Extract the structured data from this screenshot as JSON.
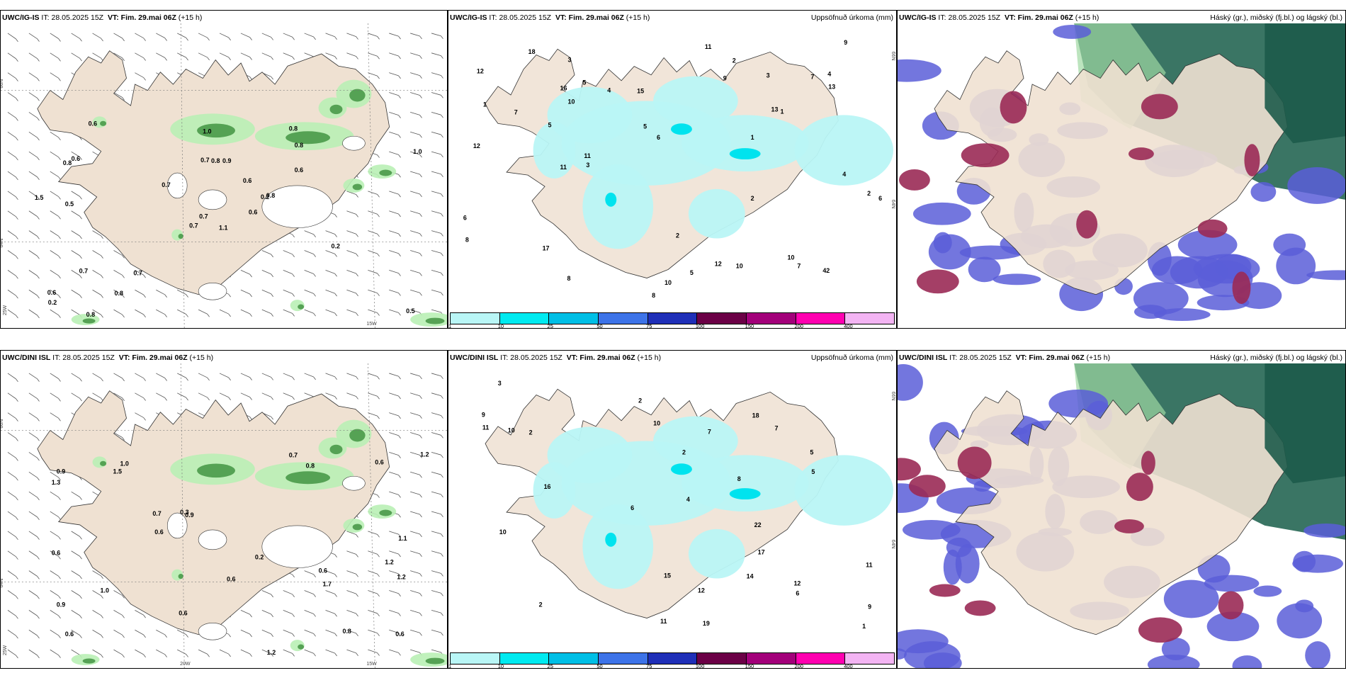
{
  "panels": {
    "p1": {
      "model": "UWC/IG-IS",
      "it_label": "IT:",
      "it": "28.05.2025 15Z",
      "vt_label": "VT:",
      "vt": "Fim. 29.mai 06Z",
      "lead": "(+15 h)",
      "right": ""
    },
    "p2": {
      "model": "UWC/IG-IS",
      "it_label": "IT:",
      "it": "28.05.2025 15Z",
      "vt_label": "VT:",
      "vt": "Fim. 29.mai 06Z",
      "lead": "(+15 h)",
      "right": "Uppsöfnuð úrkoma (mm)"
    },
    "p3": {
      "model": "UWC/IG-IS",
      "it_label": "IT:",
      "it": "28.05.2025 15Z",
      "vt_label": "VT:",
      "vt": "Fim. 29.mai 06Z",
      "lead": "(+15 h)",
      "right": "Háský (gr.), miðský (fj.bl.) og lágský (bl.)"
    },
    "p4": {
      "model": "UWC/DINI ISL",
      "it_label": "IT:",
      "it": "28.05.2025 15Z",
      "vt_label": "VT:",
      "vt": "Fim. 29.mai 06Z",
      "lead": "(+15 h)",
      "right": ""
    },
    "p5": {
      "model": "UWC/DINI ISL",
      "it_label": "IT:",
      "it": "28.05.2025 15Z",
      "vt_label": "VT:",
      "vt": "Fim. 29.mai 06Z",
      "lead": "(+15 h)",
      "right": "Uppsöfnuð úrkoma (mm)"
    },
    "p6": {
      "model": "UWC/DINI ISL",
      "it_label": "IT:",
      "it": "28.05.2025 15Z",
      "vt_label": "VT:",
      "vt": "Fim. 29.mai 06Z",
      "lead": "(+15 h)",
      "right": "Háský (gr.), miðský (fj.bl.) og lágský (bl.)"
    }
  },
  "colorbar": {
    "ticks": [
      "1",
      "10",
      "25",
      "50",
      "75",
      "100",
      "150",
      "200",
      "400"
    ],
    "colors": [
      "#b9f6f6",
      "#00eaf0",
      "#00bfe6",
      "#3d73e8",
      "#1f2fb8",
      "#6b0046",
      "#a3007a",
      "#ff00b0",
      "#f3b4f3"
    ]
  },
  "grid_labels": {
    "n66": "66N",
    "n64": "64N",
    "w20": "20W",
    "w15": "15W",
    "w25": "25W"
  },
  "wind_labels_top": [
    "1.1",
    "0.8",
    "0.7",
    "0.6",
    "0.2",
    "0.7",
    "0.8",
    "0.9",
    "0.8",
    "0.6",
    "0.6",
    "0.5",
    "0.5",
    "1.0",
    "0.7",
    "0.6",
    "0.8",
    "0.7",
    "0.6",
    "0.7",
    "0.7",
    "0.2",
    "0.8",
    "0.8",
    "0.8",
    "0.2",
    "0.6",
    "1.0",
    "1.5"
  ],
  "wind_labels_bottom": [
    "0.6",
    "1.2",
    "0.6",
    "1.0",
    "0.9",
    "0.8",
    "0.9",
    "0.8",
    "0.7",
    "1.2",
    "1.3",
    "0.6",
    "0.9",
    "0.6",
    "0.6",
    "1.1",
    "0.6",
    "0.2",
    "0.3",
    "1.0",
    "1.2",
    "0.6",
    "0.6",
    "1.2",
    "0.7",
    "1.5",
    "1.7"
  ],
  "precip_labels_top": [
    "1",
    "10",
    "1",
    "10",
    "7",
    "8",
    "2",
    "3",
    "4",
    "6",
    "2",
    "5",
    "13",
    "17",
    "12",
    "8",
    "11",
    "15",
    "42",
    "12",
    "7",
    "4",
    "6",
    "2",
    "3",
    "5",
    "13",
    "2",
    "18",
    "11",
    "6",
    "10",
    "9",
    "7",
    "12",
    "3",
    "4",
    "9",
    "11",
    "8",
    "1",
    "16",
    "5",
    "10",
    "5"
  ],
  "precip_labels_bottom": [
    "2",
    "6",
    "9",
    "5",
    "11",
    "10",
    "19",
    "18",
    "16",
    "10",
    "12",
    "7",
    "22",
    "10",
    "9",
    "7",
    "11",
    "14",
    "12",
    "17",
    "11",
    "15",
    "8",
    "6",
    "5",
    "2",
    "3",
    "1",
    "4",
    "2",
    "2"
  ]
}
